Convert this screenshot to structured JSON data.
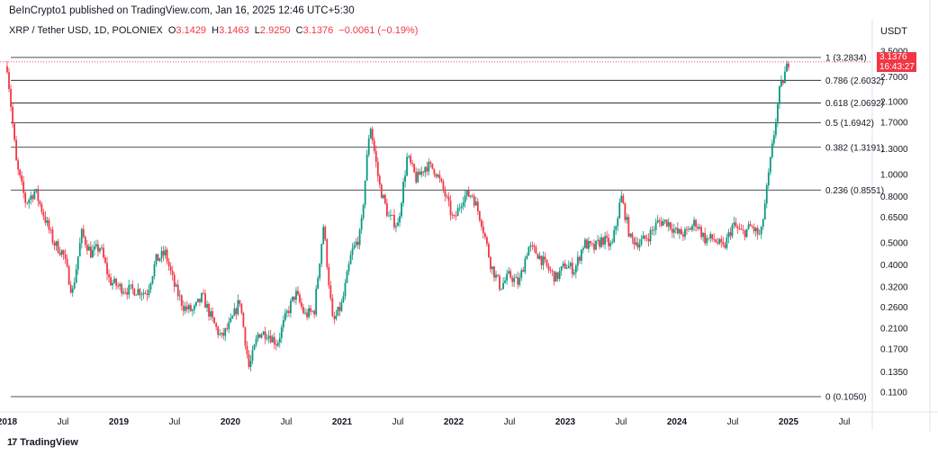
{
  "header": {
    "publisher": "BeInCrypto1 published on TradingView.com, Jan 16, 2025 12:46 UTC+5:30",
    "symbol": "XRP / Tether USD, 1D, POLONIEX",
    "o_label": "O",
    "o_value": "3.1429",
    "h_label": "H",
    "h_value": "3.1463",
    "l_label": "L",
    "l_value": "2.9250",
    "c_label": "C",
    "c_value": "3.1376",
    "change": "−0.0061 (−0.19%)",
    "currency": "USDT"
  },
  "price_badge": {
    "price": "3.1376",
    "countdown": "16:43:27"
  },
  "footer": {
    "brand": "TradingView"
  },
  "colors": {
    "up": "#089981",
    "down": "#f23645",
    "level_line": "#131722",
    "axis_text": "#131722"
  },
  "chart_data": {
    "type": "candlestick",
    "scale": "log",
    "ylim": [
      0.095,
      3.9
    ],
    "y_ticks": [
      "3.5000",
      "2.7000",
      "2.1000",
      "1.7000",
      "1.3000",
      "1.0000",
      "0.8000",
      "0.6500",
      "0.5000",
      "0.4000",
      "0.3200",
      "0.2600",
      "0.2100",
      "0.1700",
      "0.1350",
      "0.1100"
    ],
    "x_ticks": [
      "2018",
      "Jul",
      "2019",
      "Jul",
      "2020",
      "Jul",
      "2021",
      "Jul",
      "2022",
      "Jul",
      "2023",
      "Jul",
      "2024",
      "Jul",
      "2025",
      "Jul"
    ],
    "x_range": [
      "2018-01",
      "2025-10"
    ],
    "fib_levels": [
      {
        "ratio": "1",
        "value": 3.2834,
        "label": "1 (3.2834)"
      },
      {
        "ratio": "0.786",
        "value": 2.6032,
        "label": "0.786 (2.6032)"
      },
      {
        "ratio": "0.618",
        "value": 2.0692,
        "label": "0.618 (2.0692)"
      },
      {
        "ratio": "0.5",
        "value": 1.6942,
        "label": "0.5 (1.6942)"
      },
      {
        "ratio": "0.382",
        "value": 1.3191,
        "label": "0.382 (1.3191)"
      },
      {
        "ratio": "0.236",
        "value": 0.8551,
        "label": "0.236 (0.8551)"
      },
      {
        "ratio": "0",
        "value": 0.105,
        "label": "0 (0.1050)"
      }
    ],
    "price_path": [
      [
        "2018-01",
        3.0
      ],
      [
        "2018-02",
        1.1
      ],
      [
        "2018-03",
        0.75
      ],
      [
        "2018-04",
        0.85
      ],
      [
        "2018-05",
        0.65
      ],
      [
        "2018-06",
        0.5
      ],
      [
        "2018-07",
        0.45
      ],
      [
        "2018-08",
        0.3
      ],
      [
        "2018-09",
        0.55
      ],
      [
        "2018-10",
        0.45
      ],
      [
        "2018-11",
        0.48
      ],
      [
        "2018-12",
        0.34
      ],
      [
        "2019-01",
        0.32
      ],
      [
        "2019-02",
        0.31
      ],
      [
        "2019-03",
        0.31
      ],
      [
        "2019-04",
        0.3
      ],
      [
        "2019-05",
        0.42
      ],
      [
        "2019-06",
        0.45
      ],
      [
        "2019-07",
        0.32
      ],
      [
        "2019-08",
        0.26
      ],
      [
        "2019-09",
        0.25
      ],
      [
        "2019-10",
        0.29
      ],
      [
        "2019-11",
        0.23
      ],
      [
        "2019-12",
        0.19
      ],
      [
        "2020-01",
        0.22
      ],
      [
        "2020-02",
        0.28
      ],
      [
        "2020-03",
        0.14
      ],
      [
        "2020-04",
        0.2
      ],
      [
        "2020-05",
        0.2
      ],
      [
        "2020-06",
        0.18
      ],
      [
        "2020-07",
        0.24
      ],
      [
        "2020-08",
        0.3
      ],
      [
        "2020-09",
        0.24
      ],
      [
        "2020-10",
        0.25
      ],
      [
        "2020-11",
        0.6
      ],
      [
        "2020-12",
        0.22
      ],
      [
        "2021-01",
        0.27
      ],
      [
        "2021-02",
        0.45
      ],
      [
        "2021-03",
        0.55
      ],
      [
        "2021-04",
        1.7
      ],
      [
        "2021-05",
        0.9
      ],
      [
        "2021-06",
        0.65
      ],
      [
        "2021-07",
        0.6
      ],
      [
        "2021-08",
        1.2
      ],
      [
        "2021-09",
        0.95
      ],
      [
        "2021-10",
        1.1
      ],
      [
        "2021-11",
        1.05
      ],
      [
        "2021-12",
        0.83
      ],
      [
        "2022-01",
        0.62
      ],
      [
        "2022-02",
        0.8
      ],
      [
        "2022-03",
        0.82
      ],
      [
        "2022-04",
        0.62
      ],
      [
        "2022-05",
        0.4
      ],
      [
        "2022-06",
        0.32
      ],
      [
        "2022-07",
        0.36
      ],
      [
        "2022-08",
        0.33
      ],
      [
        "2022-09",
        0.48
      ],
      [
        "2022-10",
        0.45
      ],
      [
        "2022-11",
        0.39
      ],
      [
        "2022-12",
        0.35
      ],
      [
        "2023-01",
        0.4
      ],
      [
        "2023-02",
        0.38
      ],
      [
        "2023-03",
        0.5
      ],
      [
        "2023-04",
        0.47
      ],
      [
        "2023-05",
        0.52
      ],
      [
        "2023-06",
        0.48
      ],
      [
        "2023-07",
        0.8
      ],
      [
        "2023-08",
        0.52
      ],
      [
        "2023-09",
        0.5
      ],
      [
        "2023-10",
        0.54
      ],
      [
        "2023-11",
        0.62
      ],
      [
        "2023-12",
        0.62
      ],
      [
        "2024-01",
        0.55
      ],
      [
        "2024-02",
        0.55
      ],
      [
        "2024-03",
        0.62
      ],
      [
        "2024-04",
        0.52
      ],
      [
        "2024-05",
        0.52
      ],
      [
        "2024-06",
        0.47
      ],
      [
        "2024-07",
        0.6
      ],
      [
        "2024-08",
        0.55
      ],
      [
        "2024-09",
        0.59
      ],
      [
        "2024-10",
        0.53
      ],
      [
        "2024-11",
        1.1
      ],
      [
        "2024-12",
        2.3
      ],
      [
        "2025-01",
        3.14
      ]
    ],
    "last_price": 3.1376
  }
}
